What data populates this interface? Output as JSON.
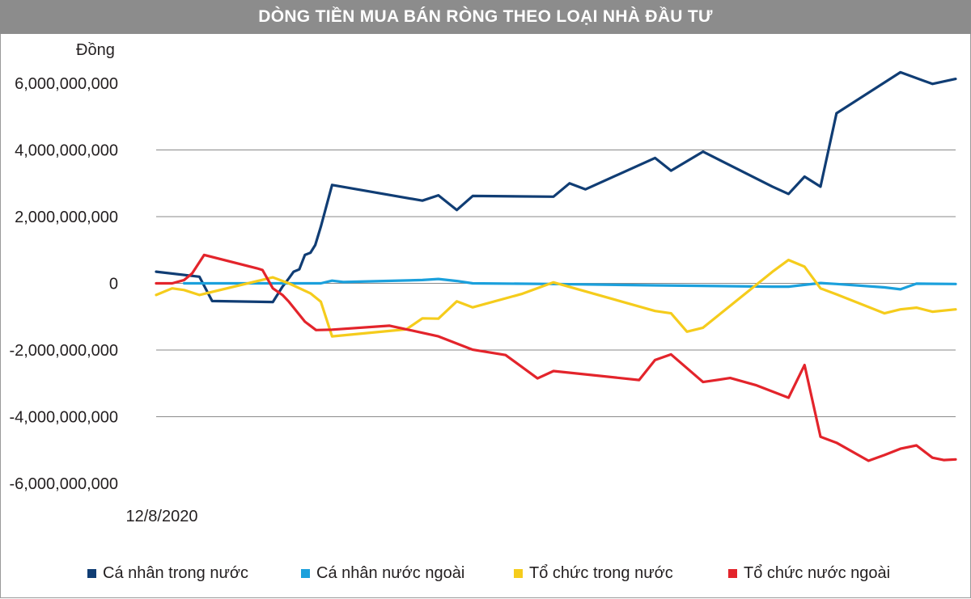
{
  "title": "DÒNG TIỀN MUA BÁN RÒNG THEO LOẠI NHÀ ĐẦU TƯ",
  "chart_data": {
    "type": "line",
    "title": "DÒNG TIỀN MUA BÁN RÒNG THEO LOẠI NHÀ ĐẦU TƯ",
    "ylabel": "Đồng",
    "xlabel": "",
    "x_tick_label": "12/8/2020",
    "ylim": [
      -6000000000,
      6000000000
    ],
    "yticks": [
      6000000000,
      4000000000,
      2000000000,
      0,
      -2000000000,
      -4000000000,
      -6000000000
    ],
    "ytick_labels": [
      "6,000,000,000",
      "4,000,000,000",
      "2,000,000,000",
      "0",
      "-2,000,000,000",
      "-4,000,000,000",
      "-6,000,000,000"
    ],
    "xlim": [
      0,
      100
    ],
    "grid": "horizontal",
    "legend_position": "bottom",
    "series": [
      {
        "name": "Cá nhân trong nước",
        "color": "#103d74",
        "points": [
          [
            0,
            350000000
          ],
          [
            5.4,
            200000000
          ],
          [
            7,
            -530000000
          ],
          [
            14.6,
            -560000000
          ],
          [
            15.8,
            -100000000
          ],
          [
            16.6,
            150000000
          ],
          [
            17.2,
            350000000
          ],
          [
            17.9,
            420000000
          ],
          [
            18.6,
            850000000
          ],
          [
            19.3,
            920000000
          ],
          [
            19.9,
            1150000000
          ],
          [
            20.6,
            1700000000
          ],
          [
            22,
            2950000000
          ],
          [
            33.3,
            2480000000
          ],
          [
            35.3,
            2640000000
          ],
          [
            37.6,
            2200000000
          ],
          [
            39.6,
            2620000000
          ],
          [
            49.7,
            2600000000
          ],
          [
            51.7,
            3000000000
          ],
          [
            53.7,
            2820000000
          ],
          [
            62.4,
            3760000000
          ],
          [
            64.4,
            3380000000
          ],
          [
            68.4,
            3950000000
          ],
          [
            77.1,
            2900000000
          ],
          [
            79.1,
            2680000000
          ],
          [
            81.1,
            3200000000
          ],
          [
            83.1,
            2900000000
          ],
          [
            85.1,
            5100000000
          ],
          [
            93.1,
            6330000000
          ],
          [
            97.1,
            5980000000
          ],
          [
            100,
            6130000000
          ]
        ]
      },
      {
        "name": "Cá nhân nước ngoài",
        "color": "#1ba0dc",
        "points": [
          [
            3.5,
            0
          ],
          [
            15.8,
            0
          ],
          [
            20.6,
            0
          ],
          [
            22,
            80000000
          ],
          [
            23.4,
            40000000
          ],
          [
            33.3,
            100000000
          ],
          [
            35.3,
            130000000
          ],
          [
            37.6,
            70000000
          ],
          [
            39.6,
            0
          ],
          [
            49.7,
            -20000000
          ],
          [
            62.4,
            -60000000
          ],
          [
            77.1,
            -100000000
          ],
          [
            79.1,
            -100000000
          ],
          [
            83.1,
            10000000
          ],
          [
            85.1,
            -20000000
          ],
          [
            91.1,
            -120000000
          ],
          [
            93.1,
            -180000000
          ],
          [
            95.1,
            -10000000
          ],
          [
            100,
            -20000000
          ]
        ]
      },
      {
        "name": "Tổ chức trong nước",
        "color": "#f5cc1c",
        "points": [
          [
            0,
            -350000000
          ],
          [
            2,
            -150000000
          ],
          [
            3.5,
            -200000000
          ],
          [
            5.4,
            -350000000
          ],
          [
            14.6,
            180000000
          ],
          [
            16.6,
            0
          ],
          [
            19.3,
            -300000000
          ],
          [
            20.6,
            -550000000
          ],
          [
            22,
            -1590000000
          ],
          [
            31.3,
            -1380000000
          ],
          [
            33.3,
            -1050000000
          ],
          [
            35.3,
            -1060000000
          ],
          [
            37.6,
            -540000000
          ],
          [
            39.6,
            -720000000
          ],
          [
            45.7,
            -320000000
          ],
          [
            49.7,
            30000000
          ],
          [
            62.4,
            -830000000
          ],
          [
            64.4,
            -900000000
          ],
          [
            66.4,
            -1450000000
          ],
          [
            68.4,
            -1330000000
          ],
          [
            77.1,
            350000000
          ],
          [
            79.1,
            700000000
          ],
          [
            81.1,
            500000000
          ],
          [
            83.1,
            -150000000
          ],
          [
            85.1,
            -330000000
          ],
          [
            91.1,
            -900000000
          ],
          [
            93.1,
            -780000000
          ],
          [
            95.1,
            -730000000
          ],
          [
            97.1,
            -850000000
          ],
          [
            100,
            -780000000
          ]
        ]
      },
      {
        "name": "Tổ chức nước ngoài",
        "color": "#e3242b",
        "points": [
          [
            0,
            0
          ],
          [
            2,
            0
          ],
          [
            3.5,
            100000000
          ],
          [
            4.5,
            300000000
          ],
          [
            6,
            850000000
          ],
          [
            12.6,
            450000000
          ],
          [
            13.3,
            400000000
          ],
          [
            14.6,
            -150000000
          ],
          [
            15.8,
            -350000000
          ],
          [
            16.6,
            -550000000
          ],
          [
            18.6,
            -1150000000
          ],
          [
            20,
            -1400000000
          ],
          [
            22,
            -1390000000
          ],
          [
            29.2,
            -1270000000
          ],
          [
            31.3,
            -1380000000
          ],
          [
            35.3,
            -1590000000
          ],
          [
            39.6,
            -1990000000
          ],
          [
            43.7,
            -2150000000
          ],
          [
            47.7,
            -2850000000
          ],
          [
            49.7,
            -2630000000
          ],
          [
            60.4,
            -2900000000
          ],
          [
            62.4,
            -2300000000
          ],
          [
            64.4,
            -2130000000
          ],
          [
            68.4,
            -2960000000
          ],
          [
            71.8,
            -2840000000
          ],
          [
            75.1,
            -3060000000
          ],
          [
            79.1,
            -3430000000
          ],
          [
            81.1,
            -2450000000
          ],
          [
            83.1,
            -4600000000
          ],
          [
            85.1,
            -4780000000
          ],
          [
            89.1,
            -5320000000
          ],
          [
            91.1,
            -5150000000
          ],
          [
            93.1,
            -4960000000
          ],
          [
            95.1,
            -4860000000
          ],
          [
            97.1,
            -5230000000
          ],
          [
            98.5,
            -5300000000
          ],
          [
            100,
            -5280000000
          ]
        ]
      }
    ]
  }
}
